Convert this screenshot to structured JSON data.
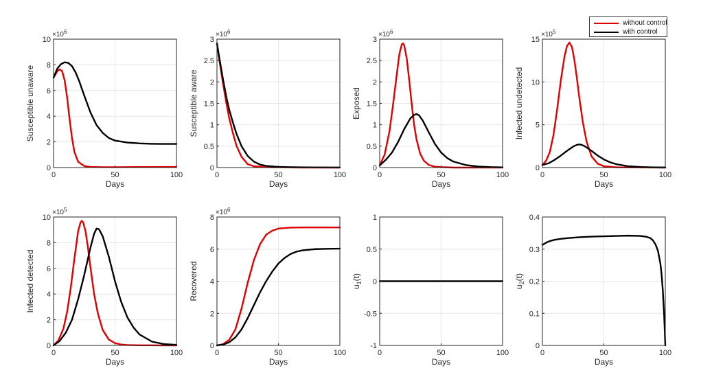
{
  "legend": {
    "placement": "top-right",
    "entries": [
      {
        "label": "without control",
        "color": "#e00000"
      },
      {
        "label": "with control",
        "color": "#000000"
      }
    ]
  },
  "chart_data": [
    {
      "type": "line",
      "ylabel": "Susceptible unaware",
      "xlabel": "Days",
      "xlim": [
        0,
        100
      ],
      "ylim": [
        0,
        10
      ],
      "xticks": [
        0,
        50,
        100
      ],
      "yticks": [
        0,
        2,
        4,
        6,
        8,
        10
      ],
      "multiplier": "×10",
      "exponent": "6",
      "grid": true,
      "series": [
        {
          "color": "#e00000",
          "x": [
            0,
            3,
            5,
            7,
            9,
            11,
            13,
            15,
            17,
            20,
            25,
            30,
            40,
            50,
            70,
            100
          ],
          "y": [
            7.0,
            7.5,
            7.65,
            7.5,
            6.8,
            5.5,
            3.8,
            2.3,
            1.2,
            0.45,
            0.12,
            0.05,
            0.03,
            0.03,
            0.04,
            0.05
          ]
        },
        {
          "color": "#000000",
          "x": [
            0,
            3,
            6,
            9,
            12,
            15,
            18,
            21,
            25,
            30,
            35,
            40,
            45,
            50,
            60,
            70,
            80,
            90,
            100
          ],
          "y": [
            7.0,
            7.7,
            8.05,
            8.2,
            8.15,
            7.9,
            7.4,
            6.7,
            5.6,
            4.3,
            3.3,
            2.7,
            2.3,
            2.1,
            1.95,
            1.88,
            1.85,
            1.84,
            1.84
          ]
        }
      ]
    },
    {
      "type": "line",
      "ylabel": "Susceptible aware",
      "xlabel": "Days",
      "xlim": [
        0,
        100
      ],
      "ylim": [
        0,
        3
      ],
      "xticks": [
        0,
        50,
        100
      ],
      "yticks": [
        0,
        0.5,
        1,
        1.5,
        2,
        2.5,
        3
      ],
      "multiplier": "×10",
      "exponent": "6",
      "grid": true,
      "series": [
        {
          "color": "#e00000",
          "x": [
            0,
            2,
            5,
            8,
            10,
            13,
            16,
            20,
            25,
            30,
            40,
            50,
            70,
            100
          ],
          "y": [
            2.9,
            2.5,
            1.95,
            1.45,
            1.15,
            0.8,
            0.5,
            0.25,
            0.08,
            0.03,
            0.01,
            0.005,
            0.0,
            0.0
          ]
        },
        {
          "color": "#000000",
          "x": [
            0,
            2,
            5,
            8,
            10,
            13,
            16,
            20,
            25,
            30,
            35,
            40,
            50,
            60,
            80,
            100
          ],
          "y": [
            2.9,
            2.55,
            2.05,
            1.6,
            1.35,
            1.05,
            0.78,
            0.5,
            0.27,
            0.14,
            0.07,
            0.04,
            0.015,
            0.008,
            0.003,
            0.001
          ]
        }
      ]
    },
    {
      "type": "line",
      "ylabel": "Exposed",
      "xlabel": "Days",
      "xlim": [
        0,
        100
      ],
      "ylim": [
        0,
        3
      ],
      "xticks": [
        0,
        50,
        100
      ],
      "yticks": [
        0,
        0.5,
        1,
        1.5,
        2,
        2.5,
        3
      ],
      "multiplier": "×10",
      "exponent": "6",
      "grid": true,
      "series": [
        {
          "color": "#e00000",
          "x": [
            0,
            4,
            8,
            11,
            14,
            16,
            18,
            19,
            20,
            22,
            24,
            26,
            28,
            30,
            33,
            36,
            40,
            45,
            50,
            60,
            100
          ],
          "y": [
            0.05,
            0.3,
            0.85,
            1.5,
            2.2,
            2.65,
            2.88,
            2.9,
            2.85,
            2.55,
            2.05,
            1.5,
            1.0,
            0.65,
            0.32,
            0.16,
            0.06,
            0.02,
            0.01,
            0.0,
            0.0
          ]
        },
        {
          "color": "#000000",
          "x": [
            0,
            5,
            10,
            15,
            20,
            25,
            28,
            30,
            32,
            35,
            40,
            45,
            50,
            55,
            60,
            70,
            80,
            90,
            100
          ],
          "y": [
            0.05,
            0.18,
            0.35,
            0.6,
            0.9,
            1.15,
            1.23,
            1.25,
            1.22,
            1.1,
            0.82,
            0.55,
            0.35,
            0.22,
            0.14,
            0.06,
            0.025,
            0.01,
            0.005
          ]
        }
      ]
    },
    {
      "type": "line",
      "ylabel": "Infected undetected",
      "xlabel": "Days",
      "xlim": [
        0,
        100
      ],
      "ylim": [
        0,
        15
      ],
      "xticks": [
        0,
        50,
        100
      ],
      "yticks": [
        0,
        5,
        10,
        15
      ],
      "multiplier": "×10",
      "exponent": "5",
      "grid": true,
      "series": [
        {
          "color": "#e00000",
          "x": [
            0,
            3,
            6,
            9,
            12,
            15,
            18,
            20,
            22,
            24,
            26,
            28,
            30,
            33,
            36,
            40,
            45,
            50,
            60,
            100
          ],
          "y": [
            0.3,
            0.8,
            1.8,
            3.8,
            6.8,
            10.2,
            13.0,
            14.2,
            14.6,
            14.1,
            12.6,
            10.5,
            8.2,
            5.2,
            3.0,
            1.3,
            0.45,
            0.15,
            0.03,
            0.0
          ]
        },
        {
          "color": "#000000",
          "x": [
            0,
            5,
            10,
            15,
            20,
            25,
            28,
            30,
            32,
            35,
            40,
            45,
            50,
            55,
            60,
            70,
            80,
            90,
            100
          ],
          "y": [
            0.3,
            0.5,
            0.9,
            1.4,
            1.95,
            2.45,
            2.65,
            2.7,
            2.65,
            2.45,
            1.95,
            1.4,
            0.95,
            0.62,
            0.4,
            0.15,
            0.06,
            0.02,
            0.01
          ]
        }
      ]
    },
    {
      "type": "line",
      "ylabel": "Infected detected",
      "xlabel": "Days",
      "xlim": [
        0,
        100
      ],
      "ylim": [
        0,
        10
      ],
      "xticks": [
        0,
        50,
        100
      ],
      "yticks": [
        0,
        2,
        4,
        6,
        8,
        10
      ],
      "multiplier": "×10",
      "exponent": "5",
      "grid": true,
      "series": [
        {
          "color": "#e00000",
          "x": [
            0,
            4,
            8,
            11,
            14,
            17,
            20,
            22,
            23,
            24,
            26,
            28,
            30,
            33,
            36,
            40,
            45,
            50,
            55,
            60,
            70,
            100
          ],
          "y": [
            0.0,
            0.4,
            1.3,
            2.6,
            4.5,
            6.8,
            8.9,
            9.6,
            9.7,
            9.6,
            8.9,
            7.6,
            6.1,
            4.0,
            2.5,
            1.2,
            0.45,
            0.18,
            0.07,
            0.03,
            0.01,
            0.0
          ]
        },
        {
          "color": "#000000",
          "x": [
            0,
            5,
            10,
            15,
            20,
            25,
            30,
            33,
            35,
            37,
            40,
            45,
            50,
            55,
            60,
            65,
            70,
            80,
            90,
            100
          ],
          "y": [
            0.0,
            0.35,
            1.0,
            2.0,
            3.6,
            5.5,
            7.6,
            8.7,
            9.1,
            9.05,
            8.5,
            6.9,
            5.0,
            3.4,
            2.2,
            1.4,
            0.85,
            0.3,
            0.1,
            0.04
          ]
        }
      ]
    },
    {
      "type": "line",
      "ylabel": "Recovered",
      "xlabel": "Days",
      "xlim": [
        0,
        100
      ],
      "ylim": [
        0,
        8
      ],
      "xticks": [
        0,
        50,
        100
      ],
      "yticks": [
        0,
        2,
        4,
        6,
        8
      ],
      "multiplier": "×10",
      "exponent": "6",
      "grid": true,
      "series": [
        {
          "color": "#e00000",
          "x": [
            0,
            5,
            10,
            15,
            20,
            25,
            30,
            35,
            40,
            45,
            50,
            60,
            70,
            80,
            100
          ],
          "y": [
            0.0,
            0.08,
            0.35,
            1.0,
            2.3,
            3.9,
            5.3,
            6.3,
            6.9,
            7.15,
            7.28,
            7.34,
            7.35,
            7.35,
            7.35
          ]
        },
        {
          "color": "#000000",
          "x": [
            0,
            5,
            10,
            15,
            20,
            25,
            30,
            35,
            40,
            45,
            50,
            55,
            60,
            65,
            70,
            80,
            90,
            100
          ],
          "y": [
            0.0,
            0.05,
            0.2,
            0.5,
            1.0,
            1.7,
            2.5,
            3.3,
            4.0,
            4.6,
            5.1,
            5.45,
            5.7,
            5.85,
            5.93,
            6.0,
            6.02,
            6.03
          ]
        }
      ]
    },
    {
      "type": "line",
      "ylabel": "u",
      "ylabel_sub": "1",
      "ylabel_suffix": "(t)",
      "xlabel": "Days",
      "xlim": [
        0,
        100
      ],
      "ylim": [
        -1,
        1
      ],
      "xticks": [
        0,
        50,
        100
      ],
      "yticks": [
        -1,
        -0.5,
        0,
        0.5,
        1
      ],
      "grid": true,
      "series": [
        {
          "color": "#000000",
          "x": [
            0,
            100
          ],
          "y": [
            0,
            0
          ]
        }
      ]
    },
    {
      "type": "line",
      "ylabel": "u",
      "ylabel_sub": "2",
      "ylabel_suffix": "(t)",
      "xlabel": "Days",
      "xlim": [
        0,
        100
      ],
      "ylim": [
        0,
        0.4
      ],
      "xticks": [
        0,
        50,
        100
      ],
      "yticks": [
        0,
        0.1,
        0.2,
        0.3,
        0.4
      ],
      "grid": true,
      "series": [
        {
          "color": "#000000",
          "x": [
            0,
            3,
            6,
            10,
            15,
            20,
            30,
            40,
            50,
            60,
            70,
            80,
            85,
            88,
            90,
            92,
            94,
            96,
            97,
            98,
            99,
            99.5,
            100
          ],
          "y": [
            0.313,
            0.32,
            0.325,
            0.329,
            0.332,
            0.334,
            0.337,
            0.339,
            0.34,
            0.341,
            0.342,
            0.341,
            0.338,
            0.334,
            0.327,
            0.315,
            0.295,
            0.255,
            0.22,
            0.17,
            0.1,
            0.05,
            0.0
          ]
        }
      ]
    }
  ]
}
